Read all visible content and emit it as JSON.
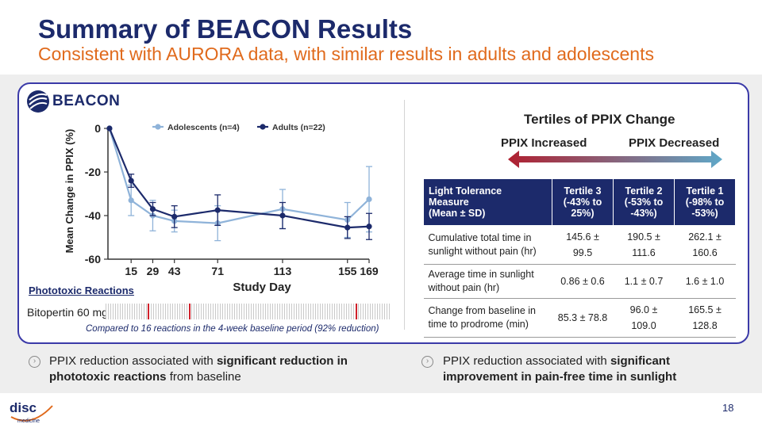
{
  "header": {
    "title": "Summary of BEACON Results",
    "subtitle": "Consistent with AURORA data, with similar results in adults and adolescents"
  },
  "logo": {
    "study": "BEACON",
    "company": "disc",
    "company_sub": "medicine"
  },
  "chart_data": {
    "type": "line",
    "ylabel": "Mean Change in PPIX (%)",
    "xlabel": "Study Day",
    "ylim": [
      -60,
      0
    ],
    "yticks": [
      0,
      -20,
      -40,
      -60
    ],
    "xlim": [
      0,
      169
    ],
    "xticks": [
      15,
      29,
      43,
      71,
      113,
      155,
      169
    ],
    "legend_position": "top",
    "series": [
      {
        "name": "Adolescents (n=4)",
        "color": "#8fb3d9",
        "x": [
          1,
          15,
          29,
          43,
          71,
          113,
          155,
          169
        ],
        "y": [
          0,
          -33,
          -40,
          -42.5,
          -43.5,
          -37,
          -42,
          -32.5
        ],
        "err": [
          0,
          7,
          7,
          5,
          8,
          9,
          8,
          15
        ]
      },
      {
        "name": "Adults (n=22)",
        "color": "#1c2a6b",
        "x": [
          1,
          15,
          29,
          43,
          71,
          113,
          155,
          169
        ],
        "y": [
          0,
          -24,
          -37,
          -40.5,
          -37.5,
          -40,
          -45.5,
          -45
        ],
        "err": [
          0,
          3,
          3,
          5,
          7,
          6,
          5,
          6
        ]
      }
    ]
  },
  "phototoxic": {
    "title": "Phototoxic Reactions",
    "drug_label": "Bitopertin 60 mg",
    "reaction_days": [
      35,
      70,
      210
    ],
    "strip_days": 240,
    "comparison_note": "Compared to 16 reactions in the 4-week baseline period (92% reduction)"
  },
  "tertiles": {
    "title": "Tertiles of PPIX Change",
    "increased_label": "PPIX Increased",
    "decreased_label": "PPIX Decreased",
    "gradient_colors": [
      "#b02030",
      "#5fa8c8"
    ],
    "table": {
      "headers": [
        [
          "Light Tolerance",
          "Measure",
          "(Mean ± SD)"
        ],
        [
          "Tertile 3",
          "(-43% to",
          "25%)"
        ],
        [
          "Tertile 2",
          "(-53% to",
          "-43%)"
        ],
        [
          "Tertile 1",
          "(-98% to",
          "-53%)"
        ]
      ],
      "rows": [
        {
          "measure": [
            "Cumulative total time in",
            "sunlight without pain (hr)"
          ],
          "values": [
            [
              "145.6 ±",
              "99.5"
            ],
            [
              "190.5 ±",
              "111.6"
            ],
            [
              "262.1 ±",
              "160.6"
            ]
          ]
        },
        {
          "measure": [
            "Average time in sunlight",
            "without pain (hr)"
          ],
          "values": [
            [
              "0.86 ± 0.6"
            ],
            [
              "1.1 ± 0.7"
            ],
            [
              "1.6 ± 1.0"
            ]
          ]
        },
        {
          "measure": [
            "Change from baseline in",
            "time to prodrome (min)"
          ],
          "values": [
            [
              "85.3 ± 78.8"
            ],
            [
              "96.0 ±",
              "109.0"
            ],
            [
              "165.5 ±",
              "128.8"
            ]
          ]
        }
      ]
    }
  },
  "bullets": [
    {
      "pre": "PPIX reduction associated with ",
      "bold": "significant reduction in phototoxic reactions",
      "post": " from baseline"
    },
    {
      "pre": "PPIX reduction associated with ",
      "bold": "significant improvement in pain-free time in sunlight",
      "post": ""
    }
  ],
  "page_number": "18",
  "colors": {
    "navy": "#1c2a6b",
    "orange": "#e06a1c",
    "border": "#3b3aa8",
    "red_tick": "#d0202a"
  }
}
